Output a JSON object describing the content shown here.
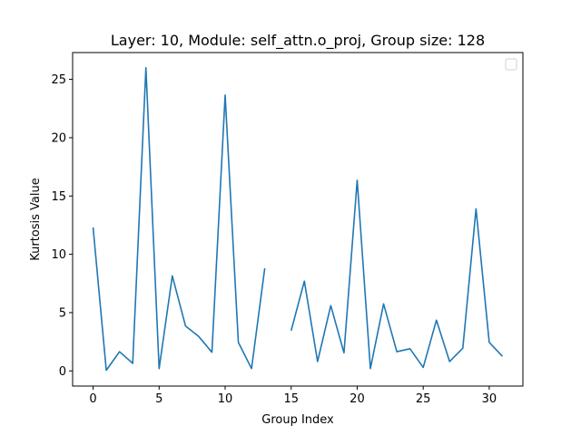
{
  "chart_data": {
    "type": "line",
    "title": "Layer: 10, Module: self_attn.o_proj,  Group size: 128",
    "xlabel": "Group Index",
    "ylabel": "Kurtosis Value",
    "xlim": [
      -1.55,
      32.55
    ],
    "ylim": [
      -1.3,
      27.3
    ],
    "xticks": [
      0,
      5,
      10,
      15,
      20,
      25,
      30
    ],
    "yticks": [
      0,
      5,
      10,
      15,
      20,
      25
    ],
    "grid": false,
    "legend": {
      "placement": "top-right",
      "entries": []
    },
    "series": [
      {
        "color": "#1f77b4",
        "x": [
          0,
          1,
          2,
          3,
          4,
          5,
          6,
          7,
          8,
          9,
          10,
          11,
          12,
          13,
          14,
          15,
          16,
          17,
          18,
          19,
          20,
          21,
          22,
          23,
          24,
          25,
          26,
          27,
          28,
          29,
          30,
          31
        ],
        "values": [
          12.3,
          0.05,
          1.65,
          0.65,
          26.0,
          0.2,
          8.15,
          3.85,
          2.95,
          1.6,
          23.65,
          2.45,
          0.2,
          8.8,
          null,
          3.45,
          7.7,
          0.8,
          5.6,
          1.55,
          16.35,
          0.2,
          5.75,
          1.65,
          1.9,
          0.3,
          4.35,
          0.8,
          1.95,
          13.9,
          2.45,
          1.25
        ]
      }
    ]
  }
}
